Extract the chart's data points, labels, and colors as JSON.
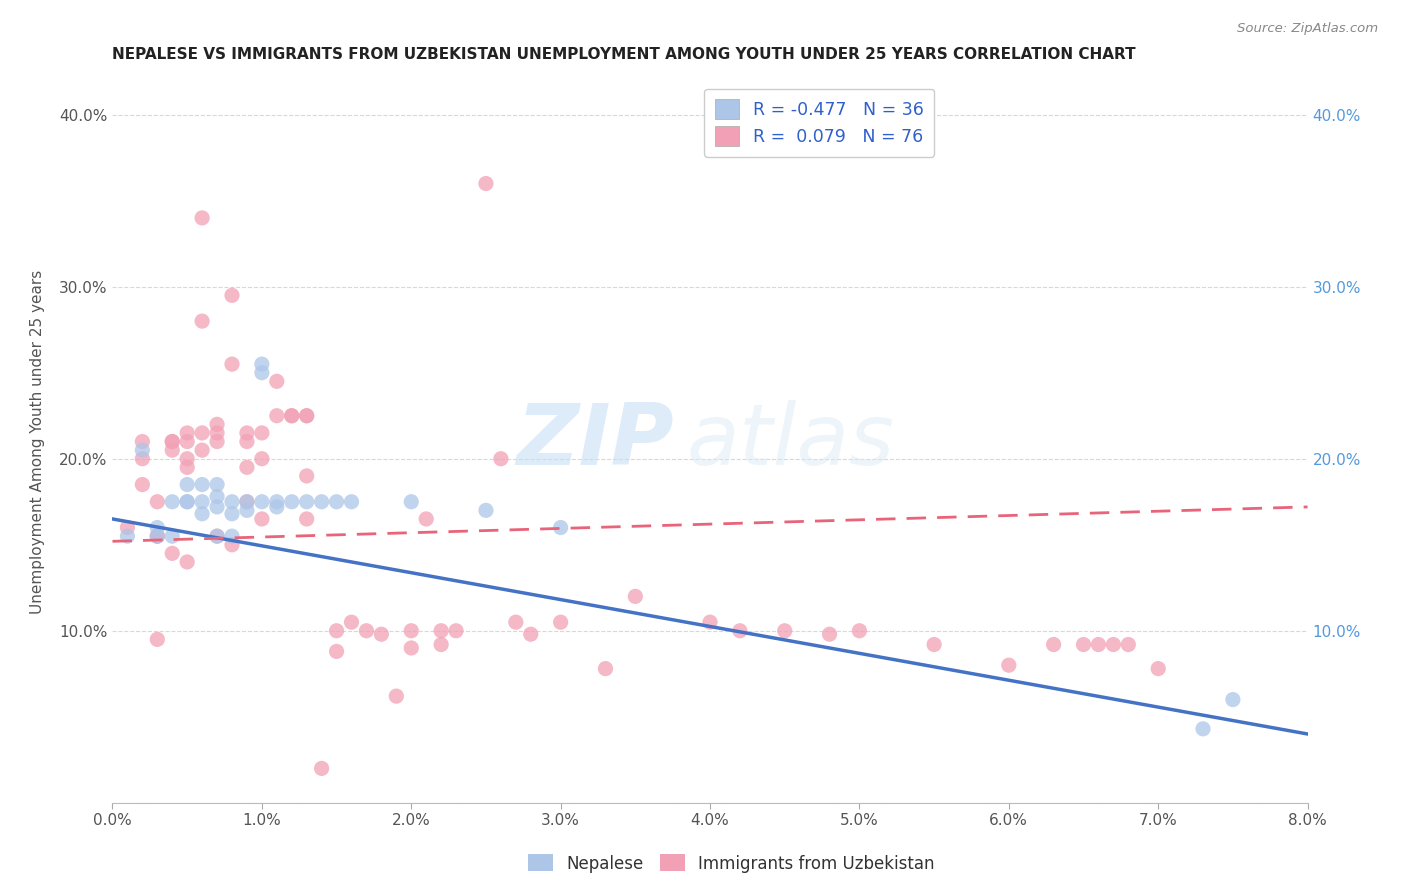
{
  "title": "NEPALESE VS IMMIGRANTS FROM UZBEKISTAN UNEMPLOYMENT AMONG YOUTH UNDER 25 YEARS CORRELATION CHART",
  "source": "Source: ZipAtlas.com",
  "ylabel": "Unemployment Among Youth under 25 years",
  "xlabel_ticks": [
    "0.0%",
    "1.0%",
    "2.0%",
    "3.0%",
    "4.0%",
    "5.0%",
    "6.0%",
    "7.0%",
    "8.0%"
  ],
  "xlim": [
    0.0,
    0.08
  ],
  "ylim": [
    0.0,
    0.42
  ],
  "legend_label1": "Nepalese",
  "legend_label2": "Immigrants from Uzbekistan",
  "R1": "-0.477",
  "N1": "36",
  "R2": "0.079",
  "N2": "76",
  "color_blue": "#adc6e8",
  "color_pink": "#f2a0b5",
  "line_blue": "#4472c4",
  "line_pink": "#e8647a",
  "watermark_zip": "ZIP",
  "watermark_atlas": "atlas",
  "blue_scatter_x": [
    0.001,
    0.002,
    0.003,
    0.003,
    0.004,
    0.004,
    0.005,
    0.005,
    0.005,
    0.006,
    0.006,
    0.006,
    0.007,
    0.007,
    0.007,
    0.007,
    0.008,
    0.008,
    0.008,
    0.009,
    0.009,
    0.01,
    0.01,
    0.01,
    0.011,
    0.011,
    0.012,
    0.013,
    0.014,
    0.015,
    0.016,
    0.02,
    0.025,
    0.03,
    0.073,
    0.075
  ],
  "blue_scatter_y": [
    0.155,
    0.205,
    0.155,
    0.16,
    0.175,
    0.155,
    0.185,
    0.175,
    0.175,
    0.185,
    0.175,
    0.168,
    0.185,
    0.178,
    0.172,
    0.155,
    0.175,
    0.168,
    0.155,
    0.175,
    0.17,
    0.255,
    0.25,
    0.175,
    0.175,
    0.172,
    0.175,
    0.175,
    0.175,
    0.175,
    0.175,
    0.175,
    0.17,
    0.16,
    0.043,
    0.06
  ],
  "pink_scatter_x": [
    0.001,
    0.002,
    0.002,
    0.002,
    0.003,
    0.003,
    0.003,
    0.003,
    0.004,
    0.004,
    0.004,
    0.004,
    0.005,
    0.005,
    0.005,
    0.005,
    0.005,
    0.006,
    0.006,
    0.006,
    0.006,
    0.007,
    0.007,
    0.007,
    0.007,
    0.008,
    0.008,
    0.008,
    0.009,
    0.009,
    0.009,
    0.009,
    0.01,
    0.01,
    0.01,
    0.011,
    0.011,
    0.012,
    0.012,
    0.013,
    0.013,
    0.013,
    0.013,
    0.014,
    0.015,
    0.015,
    0.016,
    0.017,
    0.018,
    0.019,
    0.02,
    0.02,
    0.021,
    0.022,
    0.022,
    0.023,
    0.025,
    0.026,
    0.027,
    0.028,
    0.03,
    0.033,
    0.035,
    0.04,
    0.042,
    0.045,
    0.048,
    0.05,
    0.055,
    0.06,
    0.063,
    0.065,
    0.066,
    0.067,
    0.068,
    0.07
  ],
  "pink_scatter_y": [
    0.16,
    0.185,
    0.21,
    0.2,
    0.175,
    0.155,
    0.155,
    0.095,
    0.21,
    0.21,
    0.205,
    0.145,
    0.215,
    0.21,
    0.2,
    0.195,
    0.14,
    0.28,
    0.34,
    0.215,
    0.205,
    0.22,
    0.215,
    0.21,
    0.155,
    0.255,
    0.295,
    0.15,
    0.215,
    0.21,
    0.195,
    0.175,
    0.215,
    0.2,
    0.165,
    0.245,
    0.225,
    0.225,
    0.225,
    0.225,
    0.225,
    0.19,
    0.165,
    0.02,
    0.1,
    0.088,
    0.105,
    0.1,
    0.098,
    0.062,
    0.1,
    0.09,
    0.165,
    0.1,
    0.092,
    0.1,
    0.36,
    0.2,
    0.105,
    0.098,
    0.105,
    0.078,
    0.12,
    0.105,
    0.1,
    0.1,
    0.098,
    0.1,
    0.092,
    0.08,
    0.092,
    0.092,
    0.092,
    0.092,
    0.092,
    0.078
  ],
  "blue_line_x": [
    0.0,
    0.08
  ],
  "blue_line_y": [
    0.165,
    0.04
  ],
  "pink_line_x": [
    0.0,
    0.08
  ],
  "pink_line_y": [
    0.152,
    0.172
  ],
  "grid_color": "#d8d8d8",
  "background_color": "#ffffff"
}
